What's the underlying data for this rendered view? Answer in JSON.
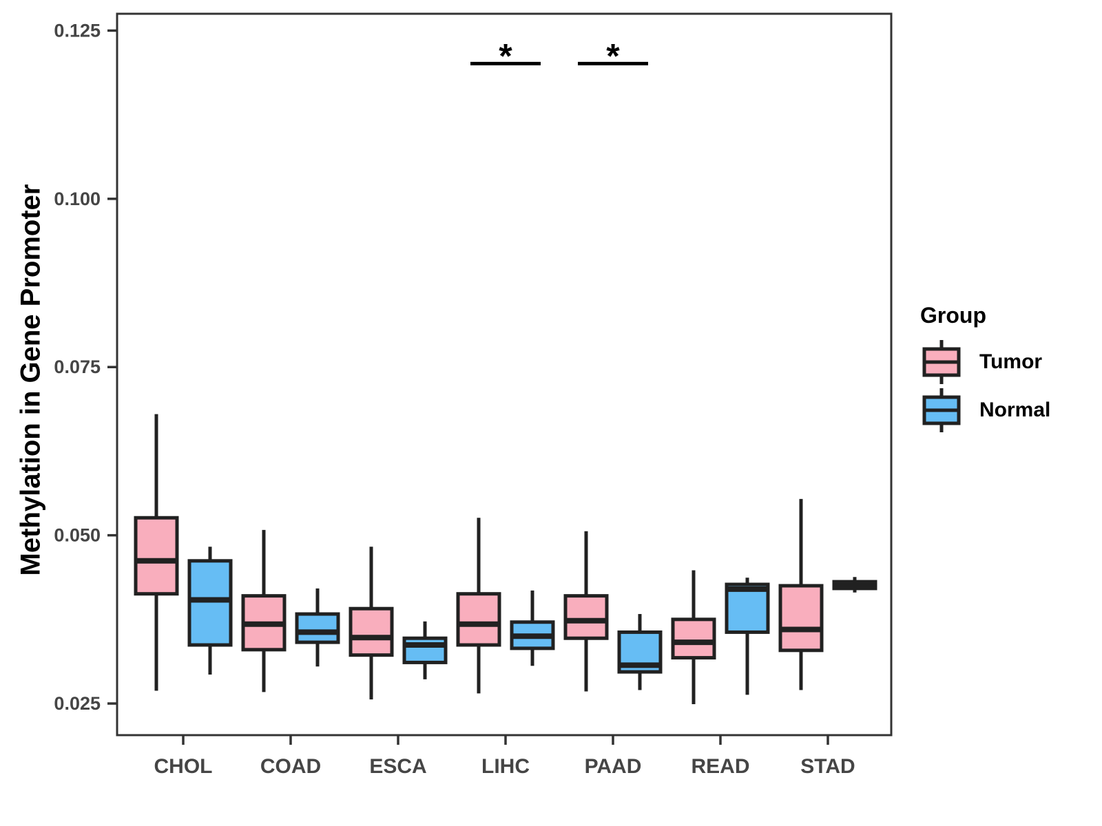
{
  "axes": {
    "y_title": "Methylation in Gene Promoter",
    "y_ticks": [
      {
        "label": "0.125",
        "value": 0.125
      },
      {
        "label": "0.100",
        "value": 0.1
      },
      {
        "label": "0.075",
        "value": 0.075
      },
      {
        "label": "0.050",
        "value": 0.05
      },
      {
        "label": "0.025",
        "value": 0.025
      }
    ]
  },
  "legend": {
    "title": "Group",
    "items": [
      {
        "label": "Tumor",
        "color": "#F9AEBD"
      },
      {
        "label": "Normal",
        "color": "#66BDF4"
      }
    ]
  },
  "colors": {
    "tumor_fill": "#F9AEBD",
    "normal_fill": "#66BDF4",
    "box_border": "#212121",
    "panel_border": "#333333",
    "axis_text": "#454545",
    "axis_line": "#333333",
    "annotation": "#000000",
    "background": "#ffffff"
  },
  "chart_data": {
    "type": "boxplot",
    "title": "",
    "xlabel": "",
    "ylabel": "Methylation in Gene Promoter",
    "ylim": [
      0.0203,
      0.1275
    ],
    "grid": false,
    "legend_position": "right",
    "categories": [
      "CHOL",
      "COAD",
      "ESCA",
      "LIHC",
      "PAAD",
      "READ",
      "STAD"
    ],
    "series": [
      {
        "name": "Tumor",
        "color": "#F9AEBD",
        "boxes": [
          {
            "category": "CHOL",
            "low": 0.0269,
            "q1": 0.0413,
            "median": 0.0462,
            "q3": 0.0526,
            "high": 0.068
          },
          {
            "category": "COAD",
            "low": 0.0267,
            "q1": 0.033,
            "median": 0.0368,
            "q3": 0.041,
            "high": 0.0508
          },
          {
            "category": "ESCA",
            "low": 0.0256,
            "q1": 0.0322,
            "median": 0.0348,
            "q3": 0.0391,
            "high": 0.0483
          },
          {
            "category": "LIHC",
            "low": 0.0265,
            "q1": 0.0337,
            "median": 0.0368,
            "q3": 0.0413,
            "high": 0.0526
          },
          {
            "category": "PAAD",
            "low": 0.0268,
            "q1": 0.0347,
            "median": 0.0373,
            "q3": 0.041,
            "high": 0.0506
          },
          {
            "category": "READ",
            "low": 0.0249,
            "q1": 0.0318,
            "median": 0.0341,
            "q3": 0.0375,
            "high": 0.0448
          },
          {
            "category": "STAD",
            "low": 0.027,
            "q1": 0.0329,
            "median": 0.036,
            "q3": 0.0425,
            "high": 0.0554
          }
        ]
      },
      {
        "name": "Normal",
        "color": "#66BDF4",
        "boxes": [
          {
            "category": "CHOL",
            "low": 0.0293,
            "q1": 0.0337,
            "median": 0.0404,
            "q3": 0.0462,
            "high": 0.0483
          },
          {
            "category": "COAD",
            "low": 0.0305,
            "q1": 0.0341,
            "median": 0.0356,
            "q3": 0.0383,
            "high": 0.0421
          },
          {
            "category": "ESCA",
            "low": 0.0286,
            "q1": 0.0311,
            "median": 0.0337,
            "q3": 0.0347,
            "high": 0.0372
          },
          {
            "category": "LIHC",
            "low": 0.0306,
            "q1": 0.0332,
            "median": 0.035,
            "q3": 0.0371,
            "high": 0.0418
          },
          {
            "category": "PAAD",
            "low": 0.027,
            "q1": 0.0297,
            "median": 0.0307,
            "q3": 0.0356,
            "high": 0.0383
          },
          {
            "category": "READ",
            "low": 0.0263,
            "q1": 0.0356,
            "median": 0.042,
            "q3": 0.0427,
            "high": 0.0437
          },
          {
            "category": "STAD",
            "low": 0.0415,
            "q1": 0.0421,
            "median": 0.0427,
            "q3": 0.0431,
            "high": 0.0438
          }
        ]
      }
    ],
    "significance": [
      {
        "category": "LIHC",
        "label": "*",
        "y": 0.1201
      },
      {
        "category": "PAAD",
        "label": "*",
        "y": 0.1201
      }
    ]
  }
}
